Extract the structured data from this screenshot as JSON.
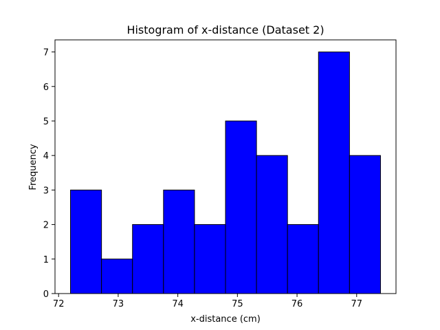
{
  "chart_data": {
    "type": "bar",
    "title": "Histogram of x-distance (Dataset 2)",
    "xlabel": "x-distance (cm)",
    "ylabel": "Frequency",
    "bin_edges": [
      72.2,
      72.72,
      73.24,
      73.76,
      74.28,
      74.8,
      75.32,
      75.84,
      76.36,
      76.88,
      77.4
    ],
    "values": [
      3,
      1,
      2,
      3,
      2,
      5,
      4,
      2,
      7,
      4
    ],
    "xlim": [
      71.94,
      77.66
    ],
    "ylim": [
      0,
      7.35
    ],
    "xticks": [
      72,
      73,
      74,
      75,
      76,
      77
    ],
    "yticks": [
      0,
      1,
      2,
      3,
      4,
      5,
      6,
      7
    ],
    "bar_color": "#0000ff",
    "edge_color": "#000000",
    "grid": false,
    "legend": "none"
  }
}
